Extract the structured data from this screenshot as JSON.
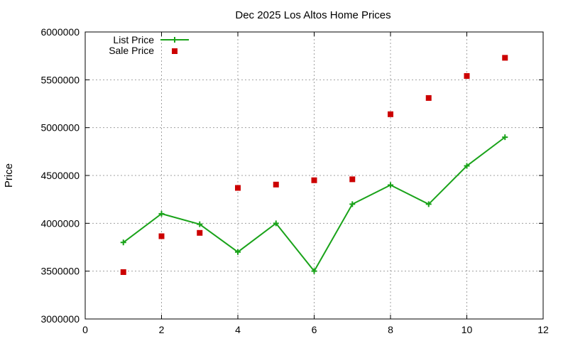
{
  "chart_data": {
    "type": "line",
    "title": "Dec 2025 Los Altos Home Prices",
    "xlabel": "",
    "ylabel": "Price",
    "xlim": [
      0,
      12
    ],
    "ylim": [
      3000000,
      6000000
    ],
    "x_ticks": [
      "0",
      "2",
      "4",
      "6",
      "8",
      "10",
      "12"
    ],
    "y_ticks": [
      "3000000",
      "3500000",
      "4000000",
      "4500000",
      "5000000",
      "5500000",
      "6000000"
    ],
    "grid": true,
    "legend_position": "top-left",
    "series": [
      {
        "name": "List Price",
        "style": "line-with-plus-markers",
        "color": "#1aa31a",
        "x": [
          1,
          2,
          3,
          4,
          5,
          6,
          7,
          8,
          9,
          10,
          11
        ],
        "y": [
          3800000,
          4100000,
          3990000,
          3700000,
          4000000,
          3500000,
          4200000,
          4400000,
          4200000,
          4600000,
          4900000
        ]
      },
      {
        "name": "Sale Price",
        "style": "square-markers",
        "color": "#cc0000",
        "x": [
          1,
          2,
          3,
          4,
          5,
          6,
          7,
          8,
          9,
          10,
          11
        ],
        "y": [
          3490000,
          3865000,
          3900000,
          4370000,
          4405000,
          4450000,
          4460000,
          5140000,
          5310000,
          5540000,
          5730000
        ]
      }
    ]
  }
}
